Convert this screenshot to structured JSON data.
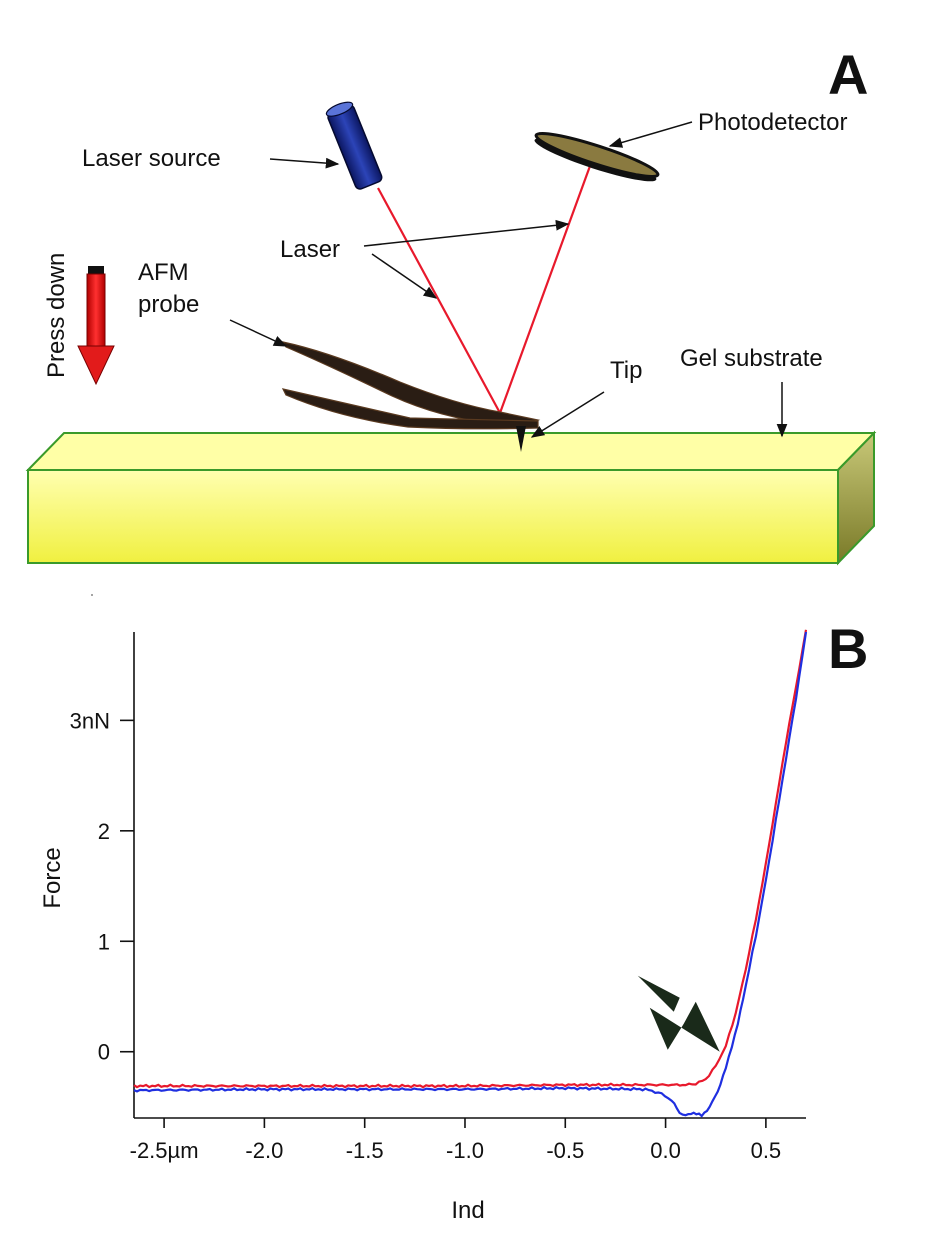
{
  "panel_a": {
    "letter": "A",
    "labels": {
      "laser_source": "Laser source",
      "photodetector": "Photodetector",
      "laser": "Laser",
      "press_down": "Press down",
      "afm_line1": "AFM",
      "afm_line2": "probe",
      "tip": "Tip",
      "gel_substrate": "Gel substrate"
    },
    "colors": {
      "laser_beam": "#e8192c",
      "laser_body": "#1c2d8a",
      "gel_top": "#ffff99",
      "gel_front": "#f2f25a",
      "gel_side": "#9a9a3a",
      "gel_border": "#3a9a2a",
      "press_arrow": "#e21b1b",
      "probe": "#2a1d14"
    }
  },
  "panel_b": {
    "letter": "B",
    "chart_data": {
      "type": "line",
      "xlabel": "Ind",
      "ylabel": "Force",
      "xlim": [
        -2.65,
        0.7
      ],
      "ylim": [
        -0.6,
        3.8
      ],
      "x_ticks": [
        {
          "value": -2.5,
          "label": "-2.5µm"
        },
        {
          "value": -2.0,
          "label": "-2.0"
        },
        {
          "value": -1.5,
          "label": "-1.5"
        },
        {
          "value": -1.0,
          "label": "-1.0"
        },
        {
          "value": -0.5,
          "label": "-0.5"
        },
        {
          "value": 0.0,
          "label": "0.0"
        },
        {
          "value": 0.5,
          "label": "0.5"
        }
      ],
      "y_ticks": [
        {
          "value": 0,
          "label": "0"
        },
        {
          "value": 1,
          "label": "1"
        },
        {
          "value": 2,
          "label": "2"
        },
        {
          "value": 3,
          "label": "3nN"
        }
      ],
      "grid": false,
      "legend": "none",
      "series": [
        {
          "color": "#e8192c",
          "points": [
            [
              -2.65,
              -0.31
            ],
            [
              -2.0,
              -0.31
            ],
            [
              -1.0,
              -0.31
            ],
            [
              -0.5,
              -0.3
            ],
            [
              0.0,
              -0.3
            ],
            [
              0.1,
              -0.3
            ],
            [
              0.15,
              -0.29
            ],
            [
              0.2,
              -0.25
            ],
            [
              0.25,
              -0.13
            ],
            [
              0.3,
              0.05
            ],
            [
              0.35,
              0.35
            ],
            [
              0.4,
              0.75
            ],
            [
              0.45,
              1.2
            ],
            [
              0.5,
              1.7
            ],
            [
              0.55,
              2.25
            ],
            [
              0.6,
              2.8
            ],
            [
              0.65,
              3.3
            ],
            [
              0.7,
              3.82
            ]
          ]
        },
        {
          "color": "#1f2fe0",
          "points": [
            [
              -2.65,
              -0.35
            ],
            [
              -2.0,
              -0.34
            ],
            [
              -1.0,
              -0.34
            ],
            [
              -0.5,
              -0.33
            ],
            [
              -0.1,
              -0.34
            ],
            [
              -0.02,
              -0.38
            ],
            [
              0.03,
              -0.44
            ],
            [
              0.07,
              -0.55
            ],
            [
              0.1,
              -0.58
            ],
            [
              0.14,
              -0.55
            ],
            [
              0.18,
              -0.58
            ],
            [
              0.22,
              -0.5
            ],
            [
              0.26,
              -0.36
            ],
            [
              0.3,
              -0.15
            ],
            [
              0.33,
              0.05
            ],
            [
              0.36,
              0.25
            ],
            [
              0.4,
              0.6
            ],
            [
              0.45,
              1.05
            ],
            [
              0.5,
              1.55
            ],
            [
              0.55,
              2.1
            ],
            [
              0.6,
              2.65
            ],
            [
              0.65,
              3.2
            ],
            [
              0.7,
              3.8
            ]
          ]
        }
      ],
      "annotation": {
        "type": "arrow",
        "points_to": [
          0.27,
          0.0
        ],
        "color": "#1a2a1a"
      }
    }
  }
}
